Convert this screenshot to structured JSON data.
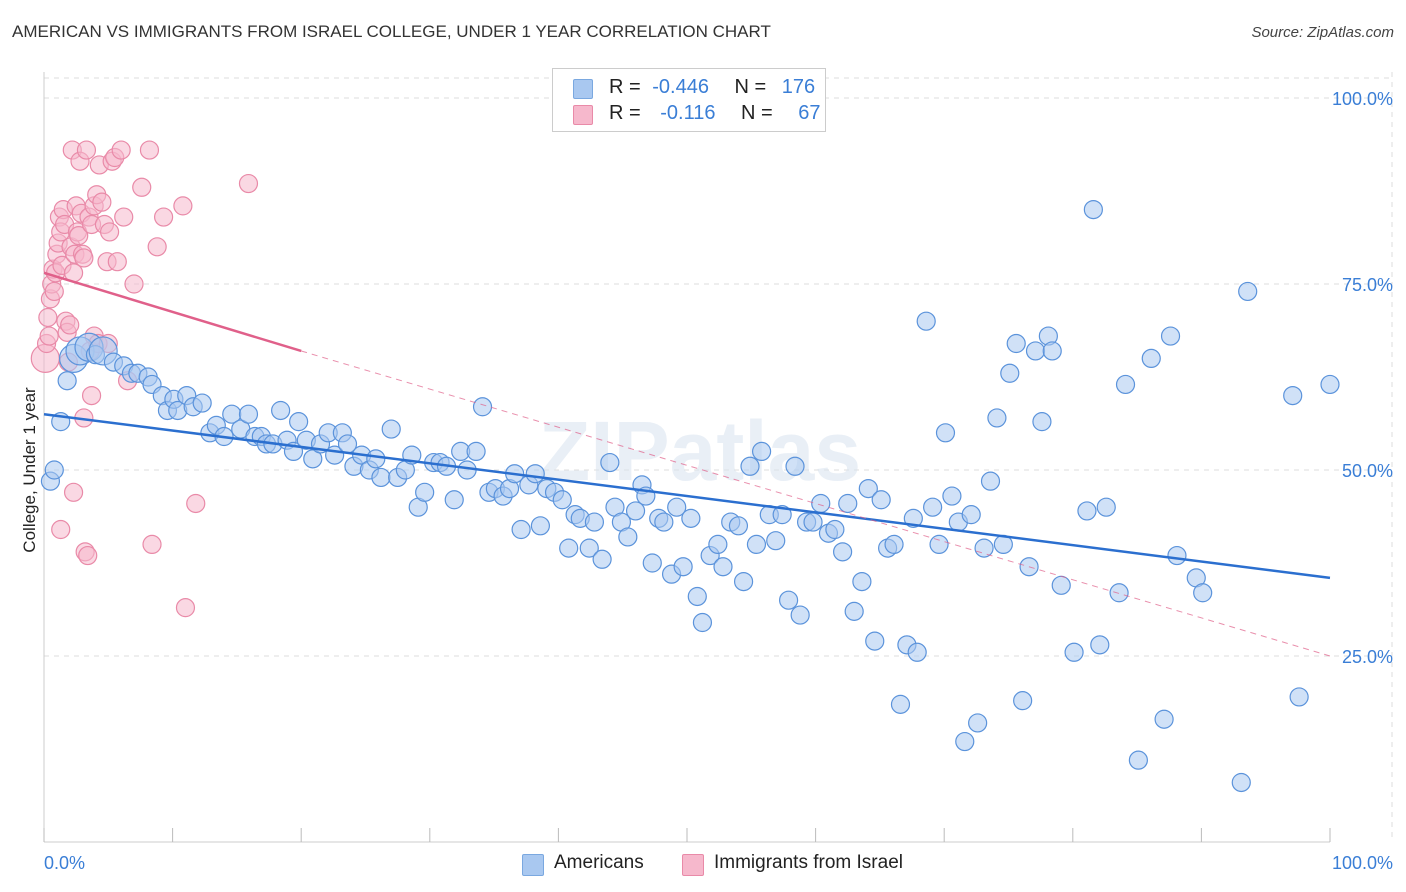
{
  "title": "AMERICAN VS IMMIGRANTS FROM ISRAEL COLLEGE, UNDER 1 YEAR CORRELATION CHART",
  "source": "Source: ZipAtlas.com",
  "watermark": "ZIPatlas",
  "legend": {
    "rows": [
      {
        "r_label": "R =",
        "r_value": "-0.446",
        "n_label": "N =",
        "n_value": "176",
        "color": "#a9c8f0",
        "border": "#7aa8e0"
      },
      {
        "r_label": "R =",
        "r_value": "-0.116",
        "n_label": "N =",
        "n_value": "67",
        "color": "#f6b8cc",
        "border": "#e98aa8"
      }
    ]
  },
  "bottom_legend": [
    {
      "label": "Americans",
      "color": "#a9c8f0",
      "border": "#7aa8e0"
    },
    {
      "label": "Immigrants from Israel",
      "color": "#f6b8cc",
      "border": "#e98aa8"
    }
  ],
  "chart_data": {
    "type": "scatter",
    "title": "AMERICAN VS IMMIGRANTS FROM ISRAEL COLLEGE, UNDER 1 YEAR CORRELATION CHART",
    "xlabel": "",
    "ylabel": "College, Under 1 year",
    "xlim": [
      0,
      100
    ],
    "ylim": [
      0,
      105
    ],
    "x_tick_labels": [
      "0.0%",
      "100.0%"
    ],
    "y_tick_labels": [
      "25.0%",
      "50.0%",
      "75.0%",
      "100.0%"
    ],
    "y_ticks": [
      25,
      50,
      75,
      100
    ],
    "grid": true,
    "colors": {
      "americans": "#3a7ed6",
      "israel": "#e0608a",
      "axis_label": "#3a7ed6"
    },
    "series": [
      {
        "name": "Americans",
        "color": "#a9c8f0",
        "trend": {
          "x": [
            0,
            100
          ],
          "y": [
            57.5,
            35.5
          ],
          "color": "#2b6fcf"
        },
        "points": [
          [
            0.5,
            48.5
          ],
          [
            0.8,
            50
          ],
          [
            1.3,
            56.5
          ],
          [
            1.8,
            62
          ],
          [
            2.3,
            65
          ],
          [
            2.8,
            66
          ],
          [
            3.5,
            66.5
          ],
          [
            4,
            65.5
          ],
          [
            4.6,
            66
          ],
          [
            5.4,
            64.5
          ],
          [
            6.2,
            64
          ],
          [
            6.8,
            63
          ],
          [
            7.3,
            63
          ],
          [
            8.1,
            62.5
          ],
          [
            8.4,
            61.5
          ],
          [
            9.2,
            60
          ],
          [
            9.6,
            58
          ],
          [
            10.1,
            59.5
          ],
          [
            10.4,
            58
          ],
          [
            11.1,
            60
          ],
          [
            11.6,
            58.5
          ],
          [
            12.3,
            59
          ],
          [
            12.9,
            55
          ],
          [
            13.4,
            56
          ],
          [
            14,
            54.5
          ],
          [
            14.6,
            57.5
          ],
          [
            15.3,
            55.5
          ],
          [
            15.9,
            57.5
          ],
          [
            16.4,
            54.5
          ],
          [
            16.9,
            54.5
          ],
          [
            17.3,
            53.5
          ],
          [
            17.8,
            53.5
          ],
          [
            18.4,
            58
          ],
          [
            18.9,
            54
          ],
          [
            19.4,
            52.5
          ],
          [
            19.8,
            56.5
          ],
          [
            20.4,
            54
          ],
          [
            20.9,
            51.5
          ],
          [
            21.5,
            53.5
          ],
          [
            22.1,
            55
          ],
          [
            22.6,
            52
          ],
          [
            23.2,
            55
          ],
          [
            23.6,
            53.5
          ],
          [
            24.1,
            50.5
          ],
          [
            24.7,
            52
          ],
          [
            25.3,
            50
          ],
          [
            25.8,
            51.5
          ],
          [
            26.2,
            49
          ],
          [
            27,
            55.5
          ],
          [
            27.5,
            49
          ],
          [
            28.1,
            50
          ],
          [
            28.6,
            52
          ],
          [
            29.1,
            45
          ],
          [
            29.6,
            47
          ],
          [
            30.3,
            51
          ],
          [
            30.8,
            51
          ],
          [
            31.3,
            50.5
          ],
          [
            31.9,
            46
          ],
          [
            32.4,
            52.5
          ],
          [
            32.9,
            50
          ],
          [
            33.6,
            52.5
          ],
          [
            34.1,
            58.5
          ],
          [
            34.6,
            47
          ],
          [
            35.1,
            47.5
          ],
          [
            35.7,
            46.5
          ],
          [
            36.2,
            47.5
          ],
          [
            36.6,
            49.5
          ],
          [
            37.1,
            42
          ],
          [
            37.7,
            48
          ],
          [
            38.2,
            49.5
          ],
          [
            38.6,
            42.5
          ],
          [
            39.1,
            47.5
          ],
          [
            39.7,
            47
          ],
          [
            40.3,
            46
          ],
          [
            40.8,
            39.5
          ],
          [
            41.3,
            44
          ],
          [
            41.7,
            43.5
          ],
          [
            42.4,
            39.5
          ],
          [
            42.8,
            43
          ],
          [
            43.4,
            38
          ],
          [
            44,
            51
          ],
          [
            44.4,
            45
          ],
          [
            44.9,
            43
          ],
          [
            45.4,
            41
          ],
          [
            46,
            44.5
          ],
          [
            46.5,
            48
          ],
          [
            46.8,
            46.5
          ],
          [
            47.3,
            37.5
          ],
          [
            47.8,
            43.5
          ],
          [
            48.2,
            43
          ],
          [
            48.8,
            36
          ],
          [
            49.2,
            45
          ],
          [
            49.7,
            37
          ],
          [
            50.3,
            43.5
          ],
          [
            50.8,
            33
          ],
          [
            51.2,
            29.5
          ],
          [
            51.8,
            38.5
          ],
          [
            52.4,
            40
          ],
          [
            52.8,
            37
          ],
          [
            53.4,
            43
          ],
          [
            54,
            42.5
          ],
          [
            54.4,
            35
          ],
          [
            54.9,
            50.5
          ],
          [
            55.4,
            40
          ],
          [
            55.8,
            52.5
          ],
          [
            56.4,
            44
          ],
          [
            56.9,
            40.5
          ],
          [
            57.4,
            44
          ],
          [
            57.9,
            32.5
          ],
          [
            58.4,
            50.5
          ],
          [
            58.8,
            30.5
          ],
          [
            59.3,
            43
          ],
          [
            59.8,
            43
          ],
          [
            60.4,
            45.5
          ],
          [
            61,
            41.5
          ],
          [
            61.5,
            42
          ],
          [
            62.1,
            39
          ],
          [
            62.5,
            45.5
          ],
          [
            63,
            31
          ],
          [
            63.6,
            35
          ],
          [
            64.1,
            47.5
          ],
          [
            64.6,
            27
          ],
          [
            65.1,
            46
          ],
          [
            65.6,
            39.5
          ],
          [
            66.1,
            40
          ],
          [
            66.6,
            18.5
          ],
          [
            67.1,
            26.5
          ],
          [
            67.6,
            43.5
          ],
          [
            67.9,
            25.5
          ],
          [
            68.6,
            70
          ],
          [
            69.1,
            45
          ],
          [
            69.6,
            40
          ],
          [
            70.1,
            55
          ],
          [
            70.6,
            46.5
          ],
          [
            71.1,
            43
          ],
          [
            71.6,
            13.5
          ],
          [
            72.1,
            44
          ],
          [
            72.6,
            16
          ],
          [
            73.1,
            39.5
          ],
          [
            73.6,
            48.5
          ],
          [
            74.1,
            57
          ],
          [
            74.6,
            40
          ],
          [
            75.1,
            63
          ],
          [
            75.6,
            67
          ],
          [
            76.1,
            19
          ],
          [
            76.6,
            37
          ],
          [
            77.1,
            66
          ],
          [
            77.6,
            56.5
          ],
          [
            78.1,
            68
          ],
          [
            78.4,
            66
          ],
          [
            79.1,
            34.5
          ],
          [
            80.1,
            25.5
          ],
          [
            81.1,
            44.5
          ],
          [
            81.6,
            85
          ],
          [
            82.1,
            26.5
          ],
          [
            82.6,
            45
          ],
          [
            83.6,
            33.5
          ],
          [
            84.1,
            61.5
          ],
          [
            85.1,
            11
          ],
          [
            86.1,
            65
          ],
          [
            87.1,
            16.5
          ],
          [
            87.6,
            68
          ],
          [
            88.1,
            38.5
          ],
          [
            89.6,
            35.5
          ],
          [
            90.1,
            33.5
          ],
          [
            93.1,
            8
          ],
          [
            93.6,
            74
          ],
          [
            97.6,
            19.5
          ],
          [
            97.1,
            60
          ],
          [
            100,
            61.5
          ]
        ]
      },
      {
        "name": "Immigrants from Israel",
        "color": "#f6b8cc",
        "trend": {
          "x": [
            0,
            20
          ],
          "y": [
            76.5,
            66
          ],
          "color": "#e0608a",
          "dash_x": [
            20,
            100
          ],
          "dash_y": [
            66,
            25
          ]
        },
        "points": [
          [
            0.1,
            65
          ],
          [
            0.2,
            67
          ],
          [
            0.3,
            70.5
          ],
          [
            0.4,
            68
          ],
          [
            0.5,
            73
          ],
          [
            0.6,
            75
          ],
          [
            0.7,
            77
          ],
          [
            0.8,
            74
          ],
          [
            0.9,
            76.5
          ],
          [
            1,
            79
          ],
          [
            1.1,
            80.5
          ],
          [
            1.2,
            84
          ],
          [
            1.3,
            82
          ],
          [
            1.4,
            77.5
          ],
          [
            1.5,
            85
          ],
          [
            1.6,
            83
          ],
          [
            1.7,
            70
          ],
          [
            1.8,
            68.5
          ],
          [
            1.9,
            64.5
          ],
          [
            2,
            69.5
          ],
          [
            2.1,
            80
          ],
          [
            2.2,
            93
          ],
          [
            2.3,
            76.5
          ],
          [
            2.4,
            79
          ],
          [
            2.5,
            85.5
          ],
          [
            2.6,
            82
          ],
          [
            2.7,
            81.5
          ],
          [
            2.8,
            91.5
          ],
          [
            2.9,
            84.5
          ],
          [
            3,
            79
          ],
          [
            3.1,
            78.5
          ],
          [
            3.3,
            93
          ],
          [
            3.5,
            84
          ],
          [
            3.7,
            83
          ],
          [
            3.9,
            85.5
          ],
          [
            4.1,
            87
          ],
          [
            4.3,
            91
          ],
          [
            4.5,
            86
          ],
          [
            4.7,
            83
          ],
          [
            4.9,
            78
          ],
          [
            5.1,
            82
          ],
          [
            5.3,
            91.5
          ],
          [
            5.5,
            92
          ],
          [
            5.7,
            78
          ],
          [
            6,
            93
          ],
          [
            6.2,
            84
          ],
          [
            6.5,
            62
          ],
          [
            7,
            75
          ],
          [
            7.6,
            88
          ],
          [
            8.2,
            93
          ],
          [
            8.8,
            80
          ],
          [
            9.3,
            84
          ],
          [
            3.1,
            57
          ],
          [
            3.6,
            66
          ],
          [
            3.9,
            68
          ],
          [
            4.2,
            67
          ],
          [
            5,
            67
          ],
          [
            3.7,
            60
          ],
          [
            2.3,
            47
          ],
          [
            1.3,
            42
          ],
          [
            3.2,
            39
          ],
          [
            3.4,
            38.5
          ],
          [
            8.4,
            40
          ],
          [
            11,
            31.5
          ],
          [
            11.8,
            45.5
          ],
          [
            15.9,
            88.5
          ],
          [
            10.8,
            85.5
          ]
        ]
      }
    ]
  }
}
